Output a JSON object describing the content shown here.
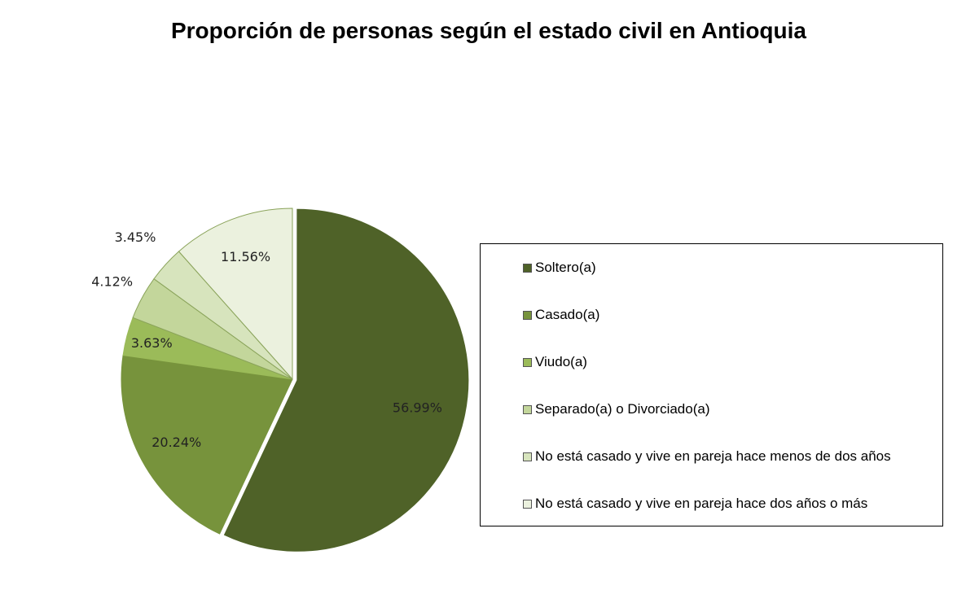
{
  "chart_data": {
    "type": "pie",
    "title": "Proporción de personas según el estado civil en Antioquia",
    "slices": [
      {
        "label": "Soltero(a)",
        "value": 56.99,
        "display": "56.99%",
        "color": "#4f6228"
      },
      {
        "label": "Casado(a)",
        "value": 20.24,
        "display": "20.24%",
        "color": "#77933c"
      },
      {
        "label": "Viudo(a)",
        "value": 3.63,
        "display": "3.63%",
        "color": "#9bbb59"
      },
      {
        "label": "Separado(a) o Divorciado(a)",
        "value": 4.12,
        "display": "4.12%",
        "color": "#c3d69b"
      },
      {
        "label": "No está casado y vive en pareja hace menos de dos años",
        "value": 3.45,
        "display": "3.45%",
        "color": "#d7e4bd"
      },
      {
        "label": "No está casado y vive en pareja hace dos años o más",
        "value": 11.56,
        "display": "11.56%",
        "color": "#ebf1de"
      }
    ],
    "exploded_slice": "Soltero(a)",
    "legend_position": "right"
  }
}
